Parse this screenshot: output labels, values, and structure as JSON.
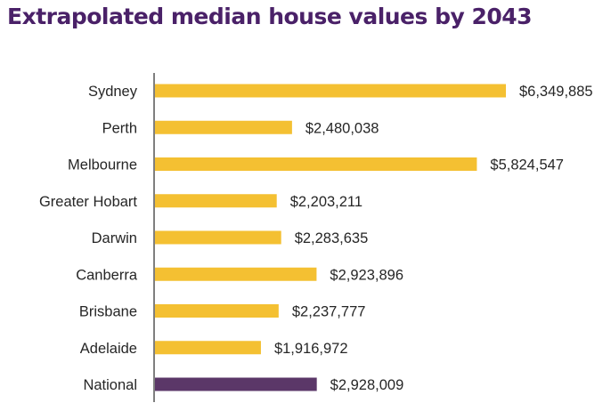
{
  "chart_data": {
    "type": "bar",
    "orientation": "horizontal",
    "title": "Extrapolated median house values by 2043",
    "xlabel": "",
    "ylabel": "",
    "categories": [
      "Sydney",
      "Perth",
      "Melbourne",
      "Greater Hobart",
      "Darwin",
      "Canberra",
      "Brisbane",
      "Adelaide",
      "National"
    ],
    "values": [
      6349885,
      2480038,
      5824547,
      2203211,
      2283635,
      2923896,
      2237777,
      1916972,
      2928009
    ],
    "labels": [
      "$6,349,885",
      "$2,480,038",
      "$5,824,547",
      "$2,203,211",
      "$2,283,635",
      "$2,923,896",
      "$2,237,777",
      "$1,916,972",
      "$2,928,009"
    ],
    "highlight": "National",
    "xlim": [
      0,
      6349885
    ],
    "grid": false,
    "legend": "none",
    "colors": {
      "default": "#f4c032",
      "highlight": "#5b3768",
      "axis": "#7f7f7f",
      "title": "#4a2168"
    }
  }
}
